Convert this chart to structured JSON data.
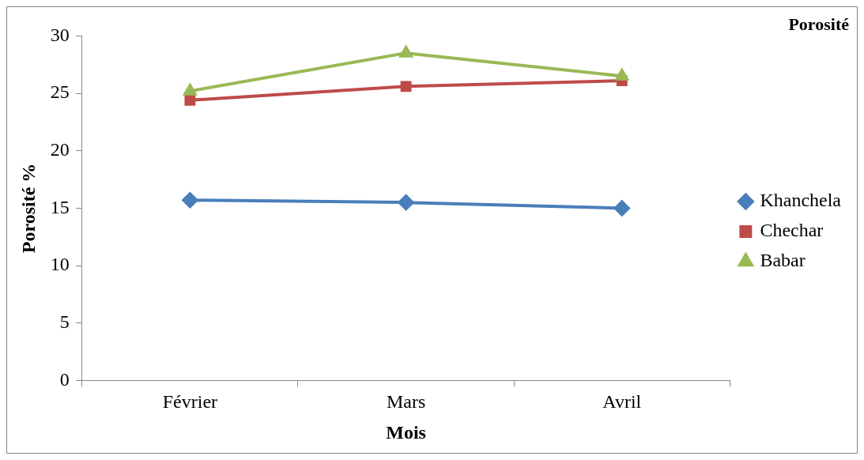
{
  "chart_data": {
    "type": "line",
    "title": "Porosité",
    "xlabel": "Mois",
    "ylabel": "Porosité %",
    "categories": [
      "Février",
      "Mars",
      "Avril"
    ],
    "series": [
      {
        "name": "Khanchela",
        "color": "#4a7ebb",
        "values": [
          15.7,
          15.5,
          15.0
        ],
        "marker": "diamond"
      },
      {
        "name": "Chechar",
        "color": "#be4b48",
        "values": [
          24.4,
          25.6,
          26.1
        ],
        "marker": "square"
      },
      {
        "name": "Babar",
        "color": "#98b954",
        "values": [
          25.2,
          28.5,
          26.5
        ],
        "marker": "triangle"
      }
    ],
    "ylim": [
      0,
      30
    ],
    "yticks": [
      0,
      5,
      10,
      15,
      20,
      25,
      30
    ],
    "grid": false,
    "legend": "right",
    "line_style": "solid"
  }
}
